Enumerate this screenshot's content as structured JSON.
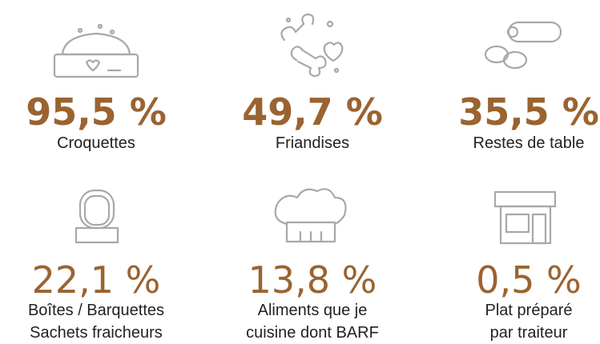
{
  "items": [
    {
      "value": "95,5 %",
      "label": [
        "Croquettes"
      ]
    },
    {
      "value": "49,7 %",
      "label": [
        "Friandises"
      ]
    },
    {
      "value": "35,5 %",
      "label": [
        "Restes de table"
      ]
    },
    {
      "value": "22,1 %",
      "label": [
        "Boîtes / Barquettes",
        "Sachets fraicheurs"
      ]
    },
    {
      "value": "13,8 %",
      "label": [
        "Aliments que je",
        "cuisine dont BARF"
      ]
    },
    {
      "value": "0,5 %",
      "label": [
        "Plat préparé",
        "par traiteur"
      ]
    }
  ]
}
